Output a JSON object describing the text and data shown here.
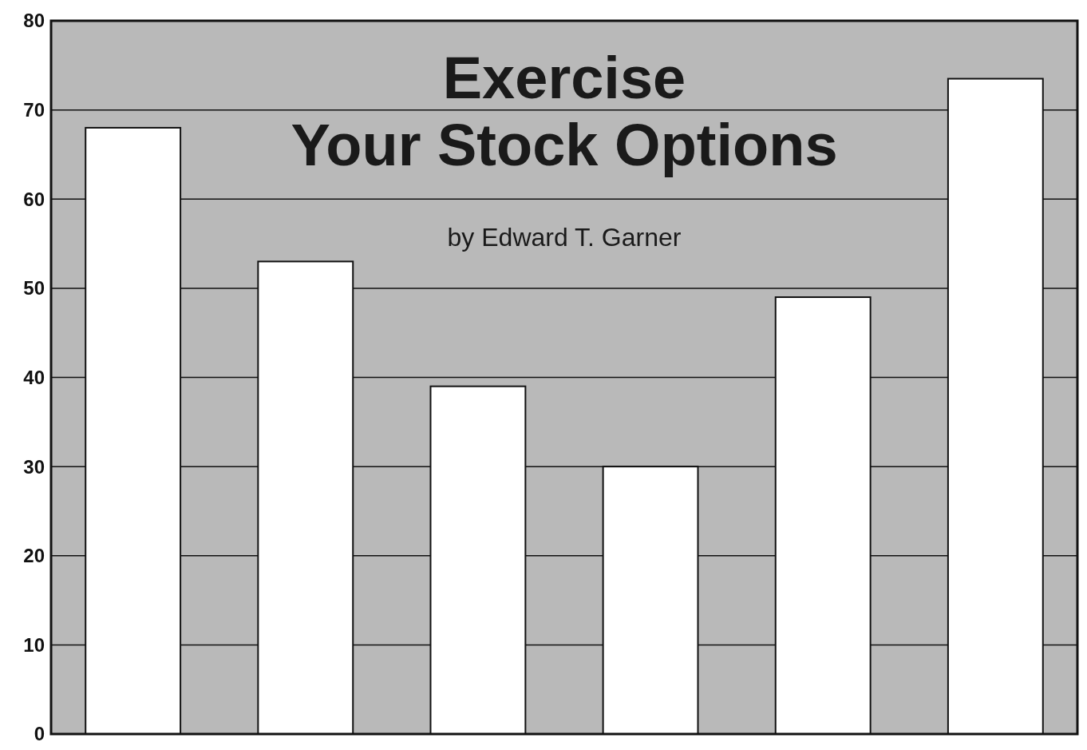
{
  "chart_data": {
    "type": "bar",
    "title": "Exercise Your Stock Options",
    "subtitle": "by Edward T. Garner",
    "categories": [
      null,
      null,
      null,
      null,
      null,
      null
    ],
    "values": [
      68,
      53,
      39,
      30,
      49,
      73.5
    ],
    "color": "#ffffff",
    "ylim": [
      0,
      80
    ],
    "yticks": [
      0,
      10,
      20,
      30,
      40,
      50,
      60,
      70,
      80
    ],
    "grid": "y"
  }
}
